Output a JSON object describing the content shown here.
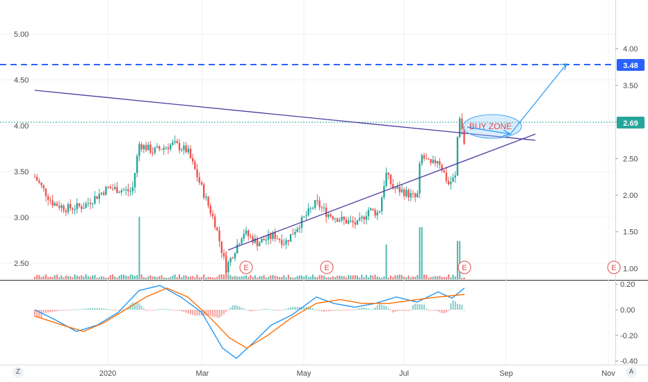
{
  "chart_data": {
    "type": "candlestick",
    "left_axis_ticks": [
      "5.00",
      "4.50",
      "4.00",
      "3.50",
      "3.00",
      "2.50"
    ],
    "right_axis_ticks": [
      "4.00",
      "3.50",
      "3.00",
      "2.50",
      "2.00",
      "1.50",
      "1.00"
    ],
    "macd_axis_ticks": [
      "0.20",
      "0.00",
      "-0.20",
      "-0.40"
    ],
    "x_labels": [
      "2020",
      "Mar",
      "May",
      "Jul",
      "Sep",
      "Nov"
    ],
    "price_tags": [
      {
        "label": "3.48",
        "color": "#2962ff"
      },
      {
        "label": "2.69",
        "color": "#26a69a"
      }
    ],
    "target_level": 3.48,
    "current_price": 2.69,
    "annotation": "BUY ZONE",
    "earnings_markers": [
      "E",
      "E",
      "E",
      "E"
    ],
    "colors": {
      "up": "#26a69a",
      "down": "#ef5350",
      "trendline": "#4a3a9e",
      "target": "#2962ff",
      "arrow": "#2196f3"
    },
    "ohlc_approx_right_axis": [
      {
        "date": "2019-11",
        "close": 2.2
      },
      {
        "date": "2019-12",
        "close": 1.85
      },
      {
        "date": "2020-01",
        "close": 2.05
      },
      {
        "date": "2020-02",
        "close": 2.6
      },
      {
        "date": "2020-03",
        "close": 1.0
      },
      {
        "date": "2020-04",
        "close": 1.5
      },
      {
        "date": "2020-05",
        "close": 1.85
      },
      {
        "date": "2020-06",
        "close": 2.15
      },
      {
        "date": "2020-07",
        "close": 2.5
      },
      {
        "date": "2020-08",
        "close": 2.69
      }
    ]
  },
  "corner_left": "Z",
  "corner_right": "A"
}
